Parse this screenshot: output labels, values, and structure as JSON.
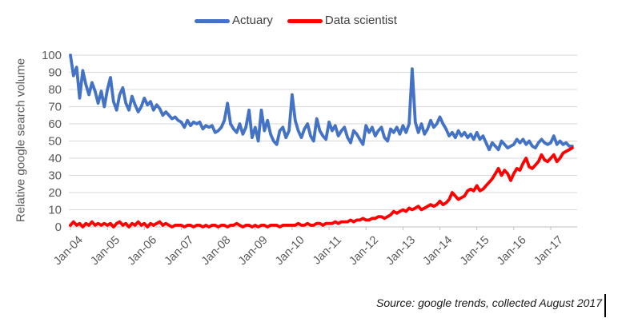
{
  "figure": {
    "background": "#ffffff",
    "source_note": "Source: google trends, collected August 2017"
  },
  "chart_data": {
    "type": "line",
    "title": "",
    "xlabel": "",
    "ylabel": "Relative google search volume",
    "ylim": [
      0,
      100
    ],
    "y_ticks": [
      0,
      10,
      20,
      30,
      40,
      50,
      60,
      70,
      80,
      90,
      100
    ],
    "x_tick_labels": [
      "Jan-04",
      "Jan-05",
      "Jan-06",
      "Jan-07",
      "Jan-08",
      "Jan-09",
      "Jan-10",
      "Jan-11",
      "Jan-12",
      "Jan-13",
      "Jan-14",
      "Jan-15",
      "Jan-16",
      "Jan-17"
    ],
    "frequency": "monthly",
    "x_start": "Jan-2004",
    "x_end": "Aug-2017",
    "grid": "horizontal",
    "legend_position": "top-center",
    "colors": {
      "grid": "#D9D9D9",
      "axis": "#BFBFBF",
      "tick_labels": "#595959",
      "legend_text": "#3F3F3F",
      "source_text": "#1A1A1A"
    },
    "series": [
      {
        "name": "Actuary",
        "color": "#4472C4",
        "values": [
          100,
          88,
          93,
          75,
          91,
          83,
          77,
          84,
          79,
          72,
          79,
          70,
          80,
          87,
          73,
          68,
          77,
          81,
          72,
          68,
          76,
          71,
          67,
          70,
          75,
          71,
          73,
          68,
          71,
          69,
          65,
          67,
          65,
          63,
          64,
          62,
          61,
          58,
          62,
          59,
          61,
          60,
          61,
          57,
          59,
          58,
          59,
          55,
          56,
          58,
          62,
          72,
          60,
          57,
          55,
          60,
          54,
          58,
          68,
          52,
          58,
          50,
          68,
          56,
          62,
          54,
          50,
          48,
          56,
          58,
          52,
          56,
          77,
          62,
          56,
          52,
          57,
          60,
          53,
          50,
          63,
          56,
          53,
          51,
          61,
          56,
          59,
          53,
          56,
          58,
          52,
          49,
          56,
          54,
          51,
          48,
          59,
          55,
          58,
          53,
          56,
          58,
          52,
          50,
          57,
          55,
          58,
          54,
          59,
          55,
          60,
          92,
          61,
          55,
          60,
          54,
          57,
          62,
          58,
          60,
          64,
          60,
          57,
          53,
          55,
          52,
          56,
          53,
          55,
          52,
          54,
          51,
          55,
          51,
          53,
          49,
          45,
          49,
          47,
          45,
          50,
          48,
          46,
          47,
          48,
          51,
          49,
          51,
          48,
          50,
          47,
          46,
          49,
          51,
          49,
          48,
          49,
          53,
          48,
          50,
          48,
          49,
          47,
          47
        ]
      },
      {
        "name": "Data scientist",
        "color": "#FE0000",
        "values": [
          1,
          3,
          1,
          2,
          0,
          2,
          1,
          3,
          1,
          2,
          1,
          2,
          1,
          2,
          0,
          2,
          3,
          1,
          2,
          0,
          2,
          1,
          3,
          1,
          2,
          0,
          2,
          1,
          2,
          3,
          1,
          2,
          1,
          0,
          1,
          1,
          1,
          0,
          1,
          1,
          0,
          1,
          1,
          0,
          1,
          0,
          1,
          1,
          0,
          1,
          1,
          0,
          1,
          1,
          2,
          1,
          0,
          1,
          1,
          0,
          1,
          0,
          1,
          1,
          0,
          1,
          1,
          1,
          0,
          1,
          1,
          1,
          1,
          1,
          2,
          1,
          1,
          2,
          1,
          1,
          2,
          2,
          1,
          2,
          2,
          2,
          3,
          2,
          3,
          3,
          3,
          4,
          3,
          4,
          4,
          5,
          4,
          4,
          5,
          5,
          6,
          6,
          5,
          6,
          7,
          9,
          8,
          9,
          10,
          9,
          11,
          10,
          11,
          12,
          10,
          11,
          12,
          13,
          12,
          13,
          15,
          13,
          14,
          16,
          20,
          18,
          16,
          17,
          18,
          21,
          22,
          21,
          24,
          21,
          22,
          24,
          26,
          28,
          31,
          34,
          30,
          33,
          31,
          27,
          31,
          34,
          33,
          37,
          40,
          35,
          34,
          36,
          38,
          42,
          39,
          38,
          40,
          42,
          38,
          40,
          43,
          44,
          45,
          46
        ]
      }
    ]
  }
}
